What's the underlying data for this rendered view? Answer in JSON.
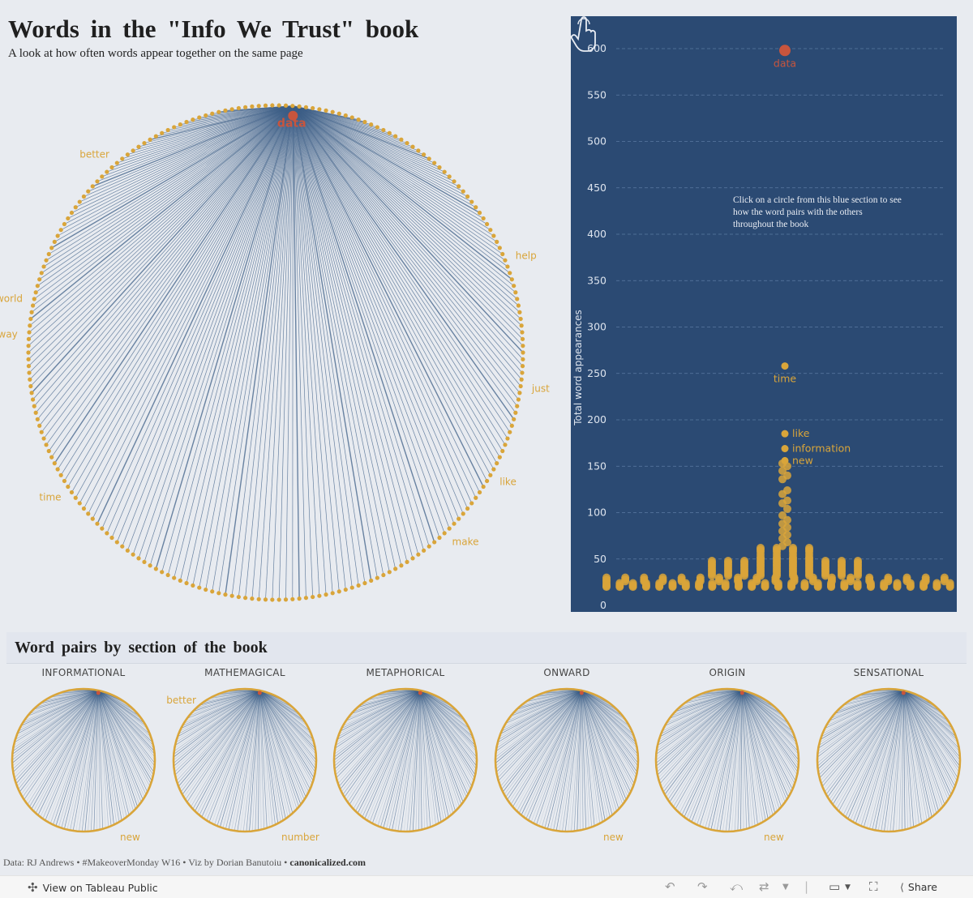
{
  "header": {
    "title": "Words in the \"Info We Trust\" book",
    "subtitle": "A look at how often words appear together on the same page"
  },
  "main_graph": {
    "highlight_word": "data",
    "labels": [
      {
        "word": "data",
        "angle_deg": 86
      },
      {
        "word": "better",
        "angle_deg": 130
      },
      {
        "word": "world",
        "angle_deg": 168
      },
      {
        "word": "way",
        "angle_deg": 176
      },
      {
        "word": "time",
        "angle_deg": 214
      },
      {
        "word": "help",
        "angle_deg": 22
      },
      {
        "word": "just",
        "angle_deg": 352
      },
      {
        "word": "like",
        "angle_deg": 330
      },
      {
        "word": "make",
        "angle_deg": 313
      }
    ]
  },
  "hint_text": "Click on a circle from this blue section to see how the word pairs with the others throughout the book",
  "chart_data": {
    "type": "scatter",
    "title": "",
    "xlabel": "",
    "ylabel": "Total word appearances",
    "ylim": [
      0,
      620
    ],
    "yticks": [
      0,
      50,
      100,
      150,
      200,
      250,
      300,
      350,
      400,
      450,
      500,
      550,
      600
    ],
    "labeled_points": [
      {
        "word": "data",
        "value": 598
      },
      {
        "word": "time",
        "value": 258
      },
      {
        "word": "like",
        "value": 185
      },
      {
        "word": "information",
        "value": 169
      },
      {
        "word": "new",
        "value": 156
      }
    ],
    "other_values": [
      153,
      150,
      145,
      140,
      136,
      124,
      120,
      113,
      110,
      104,
      97,
      92,
      88,
      84,
      80,
      76,
      72,
      68,
      64,
      62,
      60,
      58,
      55,
      52,
      50,
      48,
      46,
      44,
      42,
      40,
      38,
      36,
      34,
      32,
      30,
      28,
      26,
      24,
      22,
      21,
      20
    ]
  },
  "sections": {
    "title": "Word pairs by section of the book",
    "items": [
      {
        "name": "INFORMATIONAL",
        "label1": "",
        "label2": "new"
      },
      {
        "name": "MATHEMAGICAL",
        "label1": "better",
        "label2": "number"
      },
      {
        "name": "METAPHORICAL",
        "label1": "",
        "label2": ""
      },
      {
        "name": "ONWARD",
        "label1": "",
        "label2": "new"
      },
      {
        "name": "ORIGIN",
        "label1": "",
        "label2": "new"
      },
      {
        "name": "SENSATIONAL",
        "label1": "",
        "label2": ""
      }
    ]
  },
  "footer": {
    "credits": "Data: RJ Andrews • #MakeoverMonday W16 • Viz by Dorian Banutoiu • ",
    "site": "canonicalized.com"
  },
  "toolbar": {
    "view_label": "View on Tableau Public",
    "share_label": "Share"
  },
  "colors": {
    "node": "#d9a53a",
    "highlight": "#c8553d",
    "edge": "#3d5f87",
    "panel": "#2b4a73",
    "label": "#d9a53a"
  }
}
